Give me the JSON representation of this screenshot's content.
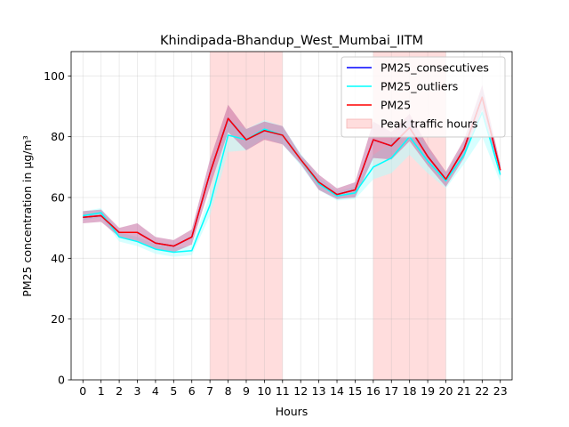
{
  "chart_data": {
    "type": "line",
    "title": "Khindipada-Bhandup_West_Mumbai_IITM",
    "xlabel": "Hours",
    "ylabel": "PM25 concentration in µg/m³",
    "xlim": [
      -0.65,
      23.65
    ],
    "ylim": [
      0,
      108
    ],
    "x_ticks": [
      0,
      1,
      2,
      3,
      4,
      5,
      6,
      7,
      8,
      9,
      10,
      11,
      12,
      13,
      14,
      15,
      16,
      17,
      18,
      19,
      20,
      21,
      22,
      23
    ],
    "y_ticks": [
      0,
      20,
      40,
      60,
      80,
      100
    ],
    "grid": true,
    "legend_position": "top-right",
    "x": [
      0,
      1,
      2,
      3,
      4,
      5,
      6,
      7,
      8,
      9,
      10,
      11,
      12,
      13,
      14,
      15,
      16,
      17,
      18,
      19,
      20,
      21,
      22,
      23
    ],
    "bands": [
      {
        "name": "Peak traffic hours",
        "x_start": 7,
        "x_end": 11,
        "color": "#ffdddd"
      },
      {
        "x_start": 16,
        "x_end": 20,
        "color": "#ffdddd"
      }
    ],
    "series": [
      {
        "name": "PM25_consecutives",
        "color": "#0000ff",
        "values": [
          53.5,
          54.0,
          48.5,
          48.5,
          45.0,
          44.0,
          47.0,
          68.0,
          86.0,
          79.0,
          82.0,
          80.5,
          72.5,
          65.0,
          61.0,
          62.5,
          79.0,
          77.0,
          83.0,
          73.5,
          66.0,
          76.0,
          93.0,
          69.0
        ]
      },
      {
        "name": "PM25_outliers",
        "color": "#00ffff",
        "values": [
          54.0,
          55.0,
          47.0,
          45.5,
          43.0,
          42.0,
          42.5,
          57.5,
          80.5,
          79.0,
          82.5,
          80.5,
          72.5,
          64.5,
          60.5,
          61.5,
          70.0,
          73.0,
          80.0,
          72.0,
          65.5,
          74.0,
          88.0,
          67.5
        ],
        "ci_lower": [
          52.5,
          53.5,
          45.5,
          44.0,
          41.5,
          40.5,
          41.0,
          54.0,
          75.0,
          75.5,
          79.5,
          77.5,
          70.5,
          62.5,
          59.0,
          59.5,
          66.0,
          68.0,
          74.0,
          68.0,
          63.0,
          71.0,
          80.0,
          65.0
        ],
        "ci_upper": [
          55.5,
          56.5,
          48.5,
          47.0,
          44.5,
          43.5,
          44.0,
          61.0,
          86.0,
          82.5,
          85.5,
          83.5,
          74.5,
          66.5,
          62.0,
          63.5,
          74.0,
          78.0,
          86.0,
          76.0,
          68.0,
          77.0,
          96.0,
          70.0
        ],
        "ci_color": "#b0ffff"
      },
      {
        "name": "PM25",
        "color": "#ff0000",
        "values": [
          53.5,
          54.0,
          48.5,
          48.5,
          45.0,
          44.0,
          47.0,
          68.0,
          86.0,
          79.0,
          82.0,
          80.5,
          72.5,
          65.0,
          61.0,
          62.5,
          79.0,
          77.0,
          83.0,
          73.5,
          66.0,
          76.0,
          93.0,
          69.0
        ],
        "ci_lower": [
          51.5,
          52.0,
          47.0,
          45.5,
          43.0,
          42.0,
          44.5,
          63.5,
          81.5,
          75.5,
          79.0,
          77.5,
          71.0,
          62.5,
          59.5,
          60.0,
          73.0,
          72.5,
          78.5,
          70.5,
          63.5,
          73.0,
          89.0,
          67.0
        ],
        "ci_upper": [
          55.5,
          56.0,
          50.0,
          51.5,
          47.0,
          46.0,
          49.5,
          72.5,
          90.5,
          82.5,
          85.0,
          83.5,
          74.0,
          67.5,
          63.0,
          65.0,
          85.0,
          81.5,
          87.5,
          77.0,
          68.5,
          79.0,
          97.0,
          71.0
        ],
        "ci_color": "#c0609a"
      }
    ]
  }
}
